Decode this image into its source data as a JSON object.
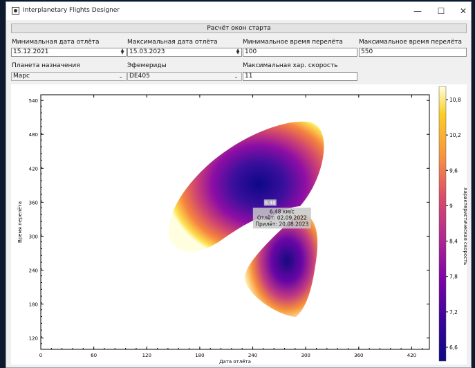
{
  "window": {
    "title": "Interplanetary Flights Designer",
    "min_icon": "—",
    "max_icon": "☐",
    "close_icon": "✕"
  },
  "toolbar": {
    "calc_label": "Расчёт окон старта"
  },
  "form": {
    "min_date": {
      "label": "Минимальная дата отлёта",
      "value": "15.12.2021"
    },
    "max_date": {
      "label": "Максимальная дата отлёта",
      "value": "15.03.2023"
    },
    "min_time": {
      "label": "Минимальное время перелёта",
      "value": "100"
    },
    "max_time": {
      "label": "Максимальное время перелёта",
      "value": "550"
    },
    "planet": {
      "label": "Планета назначения",
      "value": "Марс"
    },
    "ephemeris": {
      "label": "Эфемериды",
      "value": "DE405"
    },
    "max_speed": {
      "label": "Максимальная хар. скорость",
      "value": "11"
    }
  },
  "chart_data": {
    "type": "heatmap",
    "xlabel": "Дата отлёта",
    "ylabel": "Время перелёта",
    "colorbar_label": "Характеристическая скорость",
    "xlim": [
      0,
      440
    ],
    "ylim": [
      100,
      550
    ],
    "xticks": [
      0,
      60,
      120,
      180,
      240,
      300,
      360,
      420
    ],
    "yticks": [
      120,
      180,
      240,
      300,
      360,
      420,
      480,
      540
    ],
    "colorbar_range": [
      6.5,
      11.0
    ],
    "colorbar_ticks": [
      "10,8",
      "10,2",
      "9,6",
      "9",
      "8,4",
      "7,8",
      "7,2",
      "6,6"
    ],
    "colormap": "plasma",
    "annotation": {
      "value_label": "6.48",
      "lines": [
        "6.48 км/с",
        "Отлёт: 02.09.2022",
        "Прилёт: 20.08.2023"
      ],
      "x": 259,
      "y": 349
    }
  }
}
